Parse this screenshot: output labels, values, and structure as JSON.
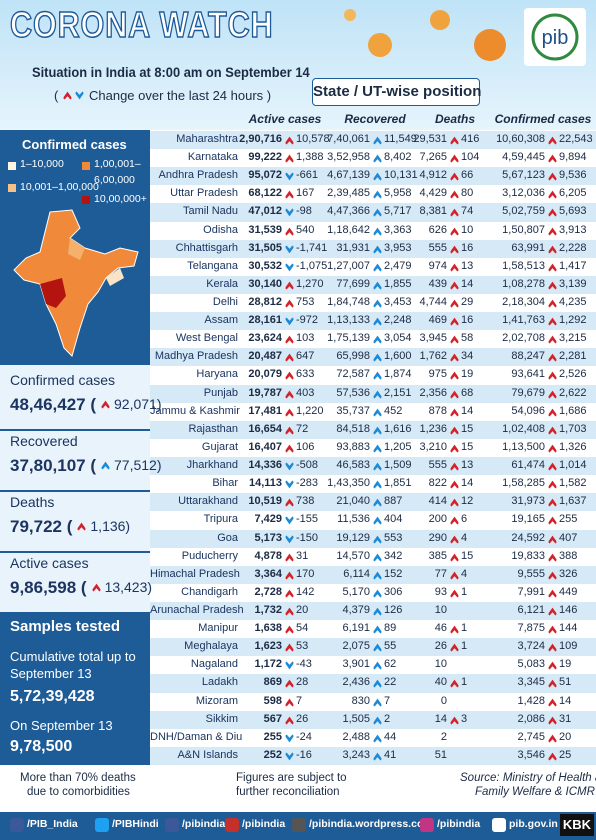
{
  "header": {
    "title": "CORONA WATCH",
    "subtitle": "Situation in India at 8:00 am on September 14",
    "change_open": "(",
    "change_note": "Change over the last 24 hours )",
    "section_title": "State / UT-wise position"
  },
  "legend": {
    "title": "Confirmed cases",
    "items": [
      "1–10,000",
      "1,00,001–",
      "6,00,000",
      "10,001–1,00,000",
      "10,00,000+"
    ]
  },
  "summary": [
    {
      "label": "Confirmed cases",
      "value": "48,46,427 (",
      "change": "92,071)"
    },
    {
      "label": "Recovered",
      "value": "37,80,107 (",
      "change": "77,512)"
    },
    {
      "label": "Deaths",
      "value": "79,722 (",
      "change": "1,136)"
    },
    {
      "label": "Active cases",
      "value": "9,86,598 (",
      "change": "13,423)"
    }
  ],
  "samples": {
    "title": "Samples tested",
    "cumulative_label": "Cumulative total up to September 13",
    "cumulative_value": "5,72,39,428",
    "daily_label": "On September 13",
    "daily_value": "9,78,500"
  },
  "table": {
    "columns": [
      "Active cases",
      "Recovered",
      "Deaths",
      "Confirmed cases"
    ],
    "rows": [
      [
        "Maharashtra",
        "2,90,716",
        "10,578",
        "7,40,061",
        "11,549",
        "29,531",
        "416",
        "10,60,308",
        "22,543"
      ],
      [
        "Karnataka",
        "99,222",
        "1,388",
        "3,52,958",
        "8,402",
        "7,265",
        "104",
        "4,59,445",
        "9,894"
      ],
      [
        "Andhra Pradesh",
        "95,072",
        "-661",
        "4,67,139",
        "10,131",
        "4,912",
        "66",
        "5,67,123",
        "9,536"
      ],
      [
        "Uttar Pradesh",
        "68,122",
        "167",
        "2,39,485",
        "5,958",
        "4,429",
        "80",
        "3,12,036",
        "6,205"
      ],
      [
        "Tamil Nadu",
        "47,012",
        "-98",
        "4,47,366",
        "5,717",
        "8,381",
        "74",
        "5,02,759",
        "5,693"
      ],
      [
        "Odisha",
        "31,539",
        "540",
        "1,18,642",
        "3,363",
        "626",
        "10",
        "1,50,807",
        "3,913"
      ],
      [
        "Chhattisgarh",
        "31,505",
        "-1,741",
        "31,931",
        "3,953",
        "555",
        "16",
        "63,991",
        "2,228"
      ],
      [
        "Telangana",
        "30,532",
        "-1,075",
        "1,27,007",
        "2,479",
        "974",
        "13",
        "1,58,513",
        "1,417"
      ],
      [
        "Kerala",
        "30,140",
        "1,270",
        "77,699",
        "1,855",
        "439",
        "14",
        "1,08,278",
        "3,139"
      ],
      [
        "Delhi",
        "28,812",
        "753",
        "1,84,748",
        "3,453",
        "4,744",
        "29",
        "2,18,304",
        "4,235"
      ],
      [
        "Assam",
        "28,161",
        "-972",
        "1,13,133",
        "2,248",
        "469",
        "16",
        "1,41,763",
        "1,292"
      ],
      [
        "West Bengal",
        "23,624",
        "103",
        "1,75,139",
        "3,054",
        "3,945",
        "58",
        "2,02,708",
        "3,215"
      ],
      [
        "Madhya Pradesh",
        "20,487",
        "647",
        "65,998",
        "1,600",
        "1,762",
        "34",
        "88,247",
        "2,281"
      ],
      [
        "Haryana",
        "20,079",
        "633",
        "72,587",
        "1,874",
        "975",
        "19",
        "93,641",
        "2,526"
      ],
      [
        "Punjab",
        "19,787",
        "403",
        "57,536",
        "2,151",
        "2,356",
        "68",
        "79,679",
        "2,622"
      ],
      [
        "Jammu & Kashmir",
        "17,481",
        "1,220",
        "35,737",
        "452",
        "878",
        "14",
        "54,096",
        "1,686"
      ],
      [
        "Rajasthan",
        "16,654",
        "72",
        "84,518",
        "1,616",
        "1,236",
        "15",
        "1,02,408",
        "1,703"
      ],
      [
        "Gujarat",
        "16,407",
        "106",
        "93,883",
        "1,205",
        "3,210",
        "15",
        "1,13,500",
        "1,326"
      ],
      [
        "Jharkhand",
        "14,336",
        "-508",
        "46,583",
        "1,509",
        "555",
        "13",
        "61,474",
        "1,014"
      ],
      [
        "Bihar",
        "14,113",
        "-283",
        "1,43,350",
        "1,851",
        "822",
        "14",
        "1,58,285",
        "1,582"
      ],
      [
        "Uttarakhand",
        "10,519",
        "738",
        "21,040",
        "887",
        "414",
        "12",
        "31,973",
        "1,637"
      ],
      [
        "Tripura",
        "7,429",
        "-155",
        "11,536",
        "404",
        "200",
        "6",
        "19,165",
        "255"
      ],
      [
        "Goa",
        "5,173",
        "-150",
        "19,129",
        "553",
        "290",
        "4",
        "24,592",
        "407"
      ],
      [
        "Puducherry",
        "4,878",
        "31",
        "14,570",
        "342",
        "385",
        "15",
        "19,833",
        "388"
      ],
      [
        "Himachal Pradesh",
        "3,364",
        "170",
        "6,114",
        "152",
        "77",
        "4",
        "9,555",
        "326"
      ],
      [
        "Chandigarh",
        "2,728",
        "142",
        "5,170",
        "306",
        "93",
        "1",
        "7,991",
        "449"
      ],
      [
        "Arunachal Pradesh",
        "1,732",
        "20",
        "4,379",
        "126",
        "10",
        null,
        "6,121",
        "146"
      ],
      [
        "Manipur",
        "1,638",
        "54",
        "6,191",
        "89",
        "46",
        "1",
        "7,875",
        "144"
      ],
      [
        "Meghalaya",
        "1,623",
        "53",
        "2,075",
        "55",
        "26",
        "1",
        "3,724",
        "109"
      ],
      [
        "Nagaland",
        "1,172",
        "-43",
        "3,901",
        "62",
        "10",
        null,
        "5,083",
        "19"
      ],
      [
        "Ladakh",
        "869",
        "28",
        "2,436",
        "22",
        "40",
        "1",
        "3,345",
        "51"
      ],
      [
        "Mizoram",
        "598",
        "7",
        "830",
        "7",
        "0",
        null,
        "1,428",
        "14"
      ],
      [
        "Sikkim",
        "567",
        "26",
        "1,505",
        "2",
        "14",
        "3",
        "2,086",
        "31"
      ],
      [
        "DNH/Daman & Diu",
        "255",
        "-24",
        "2,488",
        "44",
        "2",
        null,
        "2,745",
        "20"
      ],
      [
        "A&N Islands",
        "252",
        "-16",
        "3,243",
        "41",
        "51",
        null,
        "3,546",
        "25"
      ]
    ]
  },
  "notes": [
    "More than 70% deaths",
    "due to comorbidities",
    "Figures are subject to",
    "further reconciliation",
    "Source: Ministry of Health and",
    "Family Welfare & ICMR"
  ],
  "social": [
    "/PIB_India",
    "/PIBHindi",
    "/pibindia",
    "/pibindia",
    "/pibindia.wordpress.com",
    "/pibindia",
    "pib.gov.in",
    "KBK"
  ]
}
